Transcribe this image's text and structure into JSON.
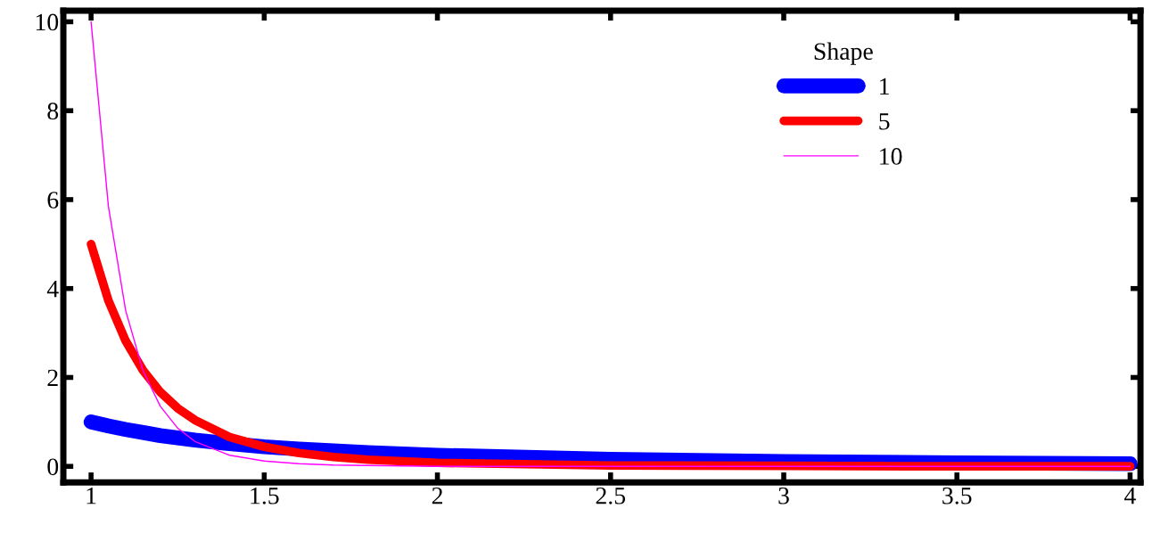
{
  "chart_data": {
    "type": "line",
    "legend_title": "Shape",
    "legend": "top right",
    "x": [
      1,
      1.05,
      1.1,
      1.15,
      1.2,
      1.25,
      1.3,
      1.4,
      1.5,
      1.6,
      1.7,
      1.8,
      2,
      2.5,
      3,
      3.5,
      4
    ],
    "series": [
      {
        "name": "1",
        "color": "#0000ff",
        "values": [
          1,
          0.91,
          0.83,
          0.76,
          0.69,
          0.64,
          0.59,
          0.51,
          0.44,
          0.39,
          0.35,
          0.31,
          0.25,
          0.16,
          0.11,
          0.08,
          0.06
        ]
      },
      {
        "name": "5",
        "color": "#ff0000",
        "values": [
          5,
          3.73,
          2.82,
          2.16,
          1.67,
          1.31,
          1.04,
          0.66,
          0.44,
          0.3,
          0.21,
          0.15,
          0.08,
          0.02,
          0.01,
          0,
          0
        ]
      },
      {
        "name": "10",
        "color": "#ff00ff",
        "values": [
          10,
          5.85,
          3.5,
          2.15,
          1.35,
          0.86,
          0.56,
          0.25,
          0.12,
          0.06,
          0.03,
          0.02,
          0,
          0,
          0,
          0,
          0
        ]
      }
    ],
    "xlim": [
      0.92,
      4.03
    ],
    "ylim": [
      -0.36,
      10.25
    ],
    "xticks": [
      1,
      1.5,
      2,
      2.5,
      3,
      3.5,
      4
    ],
    "yticks": [
      0,
      2,
      4,
      6,
      8,
      10
    ],
    "grid": false
  }
}
